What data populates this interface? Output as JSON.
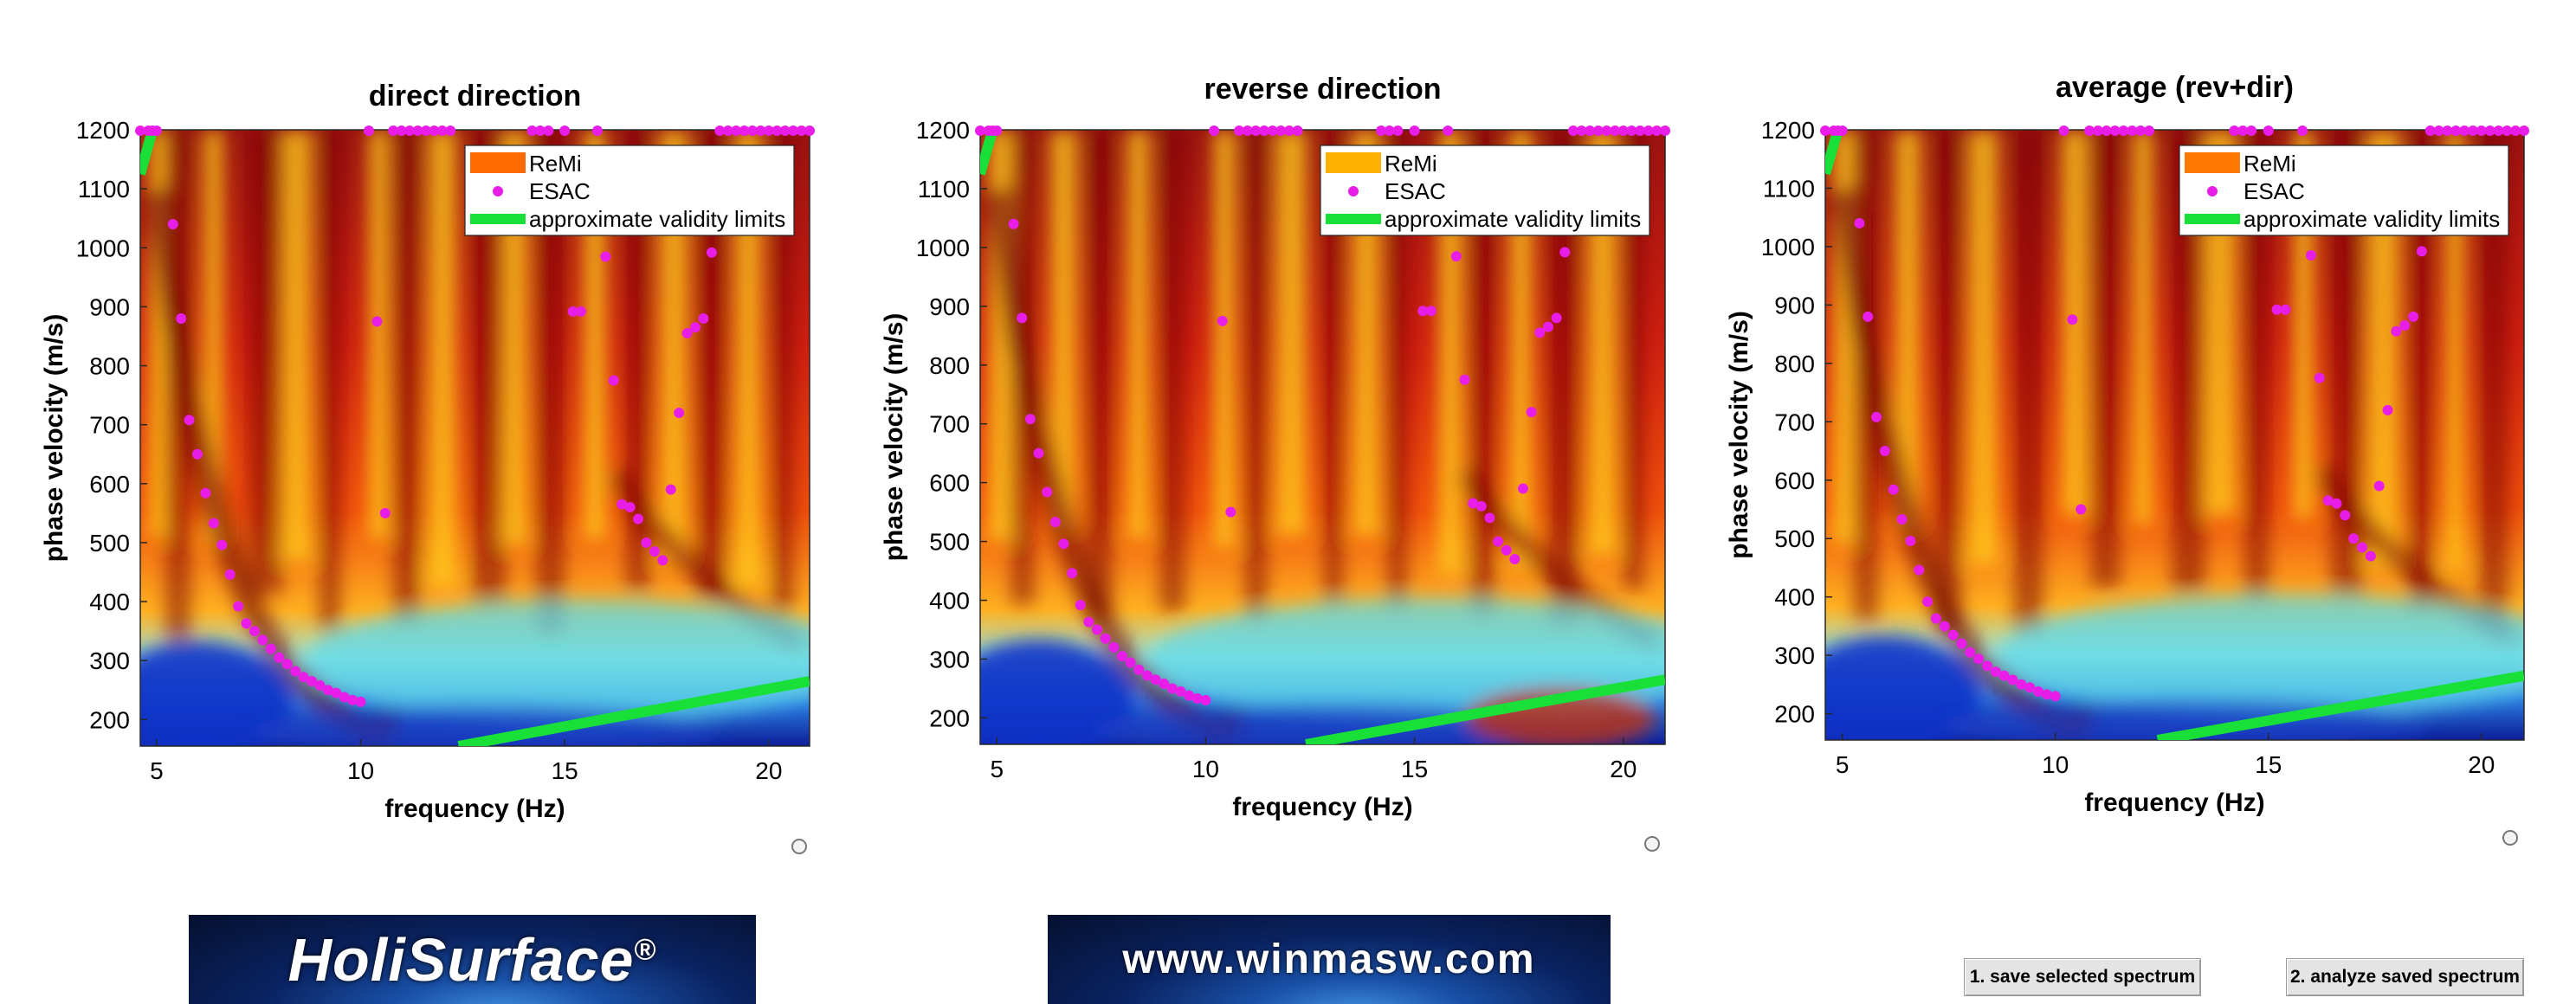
{
  "chart_data": [
    {
      "type": "heatmap",
      "title": "direct direction",
      "xlabel": "frequency (Hz)",
      "ylabel": "phase velocity (m/s)",
      "xlim": [
        4.6,
        21
      ],
      "ylim": [
        155,
        1200
      ],
      "xticks": [
        "5",
        "10",
        "15",
        "20"
      ],
      "yticks": [
        "1200",
        "1100",
        "1000",
        "900",
        "800",
        "700",
        "600",
        "500",
        "400",
        "300",
        "200"
      ],
      "legend": {
        "position": "top-right",
        "items": [
          "ReMi",
          "ESAC",
          "approximate validity limits"
        ]
      },
      "remi_swatch_color": "#ff6a00",
      "validity_limits": [
        {
          "x": [
            4.6,
            4.9
          ],
          "y": [
            1125,
            1200
          ]
        },
        {
          "x": [
            12.4,
            21.0
          ],
          "y": [
            155,
            265
          ]
        }
      ],
      "esac": {
        "color": "#e81ee8",
        "x": [
          4.6,
          4.8,
          4.9,
          5.0,
          5.4,
          5.6,
          5.8,
          6.0,
          6.2,
          6.4,
          6.6,
          6.8,
          7.0,
          7.2,
          7.4,
          7.6,
          7.8,
          8.0,
          8.2,
          8.4,
          8.6,
          8.8,
          9.0,
          9.2,
          9.4,
          9.6,
          9.8,
          10.0,
          10.2,
          10.4,
          10.6,
          10.8,
          11.0,
          11.2,
          11.4,
          11.6,
          11.8,
          12.0,
          12.2,
          14.2,
          14.4,
          14.6,
          15.0,
          15.2,
          15.4,
          15.8,
          16.0,
          16.2,
          16.4,
          16.6,
          16.8,
          17.0,
          17.2,
          17.4,
          17.6,
          17.8,
          18.0,
          18.2,
          18.4,
          18.6,
          18.8,
          19.0,
          19.2,
          19.4,
          19.6,
          19.8,
          20.0,
          20.2,
          20.4,
          20.6,
          20.8,
          21.0
        ],
        "y": [
          1200,
          1200,
          1200,
          1200,
          1040,
          880,
          708,
          650,
          584,
          533,
          496,
          446,
          392,
          363,
          350,
          335,
          320,
          305,
          294,
          282,
          272,
          265,
          258,
          250,
          245,
          238,
          233,
          230,
          1200,
          875,
          550,
          1200,
          1200,
          1200,
          1200,
          1200,
          1200,
          1200,
          1200,
          1200,
          1200,
          1200,
          1200,
          892,
          892,
          1200,
          985,
          775,
          565,
          560,
          540,
          500,
          485,
          470,
          590,
          720,
          855,
          865,
          880,
          992,
          1200,
          1200,
          1200,
          1200,
          1200,
          1200,
          1200,
          1200,
          1200,
          1200,
          1200,
          1200
        ]
      }
    },
    {
      "type": "heatmap",
      "title": "reverse direction",
      "xlabel": "frequency (Hz)",
      "ylabel": "phase velocity (m/s)",
      "xlim": [
        4.6,
        21
      ],
      "ylim": [
        155,
        1200
      ],
      "xticks": [
        "5",
        "10",
        "15",
        "20"
      ],
      "yticks": [
        "1200",
        "1100",
        "1000",
        "900",
        "800",
        "700",
        "600",
        "500",
        "400",
        "300",
        "200"
      ],
      "legend": {
        "position": "top-right",
        "items": [
          "ReMi",
          "ESAC",
          "approximate validity limits"
        ]
      },
      "remi_swatch_color": "#ffb000",
      "validity_limits": [
        {
          "x": [
            4.6,
            4.9
          ],
          "y": [
            1125,
            1200
          ]
        },
        {
          "x": [
            12.4,
            21.0
          ],
          "y": [
            155,
            265
          ]
        }
      ],
      "esac": {
        "color": "#e81ee8",
        "x": [
          4.6,
          4.8,
          4.9,
          5.0,
          5.4,
          5.6,
          5.8,
          6.0,
          6.2,
          6.4,
          6.6,
          6.8,
          7.0,
          7.2,
          7.4,
          7.6,
          7.8,
          8.0,
          8.2,
          8.4,
          8.6,
          8.8,
          9.0,
          9.2,
          9.4,
          9.6,
          9.8,
          10.0,
          10.2,
          10.4,
          10.6,
          10.8,
          11.0,
          11.2,
          11.4,
          11.6,
          11.8,
          12.0,
          12.2,
          14.2,
          14.4,
          14.6,
          15.0,
          15.2,
          15.4,
          15.8,
          16.0,
          16.2,
          16.4,
          16.6,
          16.8,
          17.0,
          17.2,
          17.4,
          17.6,
          17.8,
          18.0,
          18.2,
          18.4,
          18.6,
          18.8,
          19.0,
          19.2,
          19.4,
          19.6,
          19.8,
          20.0,
          20.2,
          20.4,
          20.6,
          20.8,
          21.0
        ],
        "y": [
          1200,
          1200,
          1200,
          1200,
          1040,
          880,
          708,
          650,
          584,
          533,
          496,
          446,
          392,
          363,
          350,
          335,
          320,
          305,
          294,
          282,
          272,
          265,
          258,
          250,
          245,
          238,
          233,
          230,
          1200,
          875,
          550,
          1200,
          1200,
          1200,
          1200,
          1200,
          1200,
          1200,
          1200,
          1200,
          1200,
          1200,
          1200,
          892,
          892,
          1200,
          985,
          775,
          565,
          560,
          540,
          500,
          485,
          470,
          590,
          720,
          855,
          865,
          880,
          992,
          1200,
          1200,
          1200,
          1200,
          1200,
          1200,
          1200,
          1200,
          1200,
          1200,
          1200,
          1200
        ]
      }
    },
    {
      "type": "heatmap",
      "title": "average (rev+dir)",
      "xlabel": "frequency (Hz)",
      "ylabel": "phase velocity (m/s)",
      "xlim": [
        4.6,
        21
      ],
      "ylim": [
        155,
        1200
      ],
      "xticks": [
        "5",
        "10",
        "15",
        "20"
      ],
      "yticks": [
        "1200",
        "1100",
        "1000",
        "900",
        "800",
        "700",
        "600",
        "500",
        "400",
        "300",
        "200"
      ],
      "legend": {
        "position": "top-right",
        "items": [
          "ReMi",
          "ESAC",
          "approximate validity limits"
        ]
      },
      "remi_swatch_color": "#ff7a00",
      "validity_limits": [
        {
          "x": [
            4.6,
            4.9
          ],
          "y": [
            1125,
            1200
          ]
        },
        {
          "x": [
            12.4,
            21.0
          ],
          "y": [
            155,
            265
          ]
        }
      ],
      "esac": {
        "color": "#e81ee8",
        "x": [
          4.6,
          4.8,
          4.9,
          5.0,
          5.4,
          5.6,
          5.8,
          6.0,
          6.2,
          6.4,
          6.6,
          6.8,
          7.0,
          7.2,
          7.4,
          7.6,
          7.8,
          8.0,
          8.2,
          8.4,
          8.6,
          8.8,
          9.0,
          9.2,
          9.4,
          9.6,
          9.8,
          10.0,
          10.2,
          10.4,
          10.6,
          10.8,
          11.0,
          11.2,
          11.4,
          11.6,
          11.8,
          12.0,
          12.2,
          14.2,
          14.4,
          14.6,
          15.0,
          15.2,
          15.4,
          15.8,
          16.0,
          16.2,
          16.4,
          16.6,
          16.8,
          17.0,
          17.2,
          17.4,
          17.6,
          17.8,
          18.0,
          18.2,
          18.4,
          18.6,
          18.8,
          19.0,
          19.2,
          19.4,
          19.6,
          19.8,
          20.0,
          20.2,
          20.4,
          20.6,
          20.8,
          21.0
        ],
        "y": [
          1200,
          1200,
          1200,
          1200,
          1040,
          880,
          708,
          650,
          584,
          533,
          496,
          446,
          392,
          363,
          350,
          335,
          320,
          305,
          294,
          282,
          272,
          265,
          258,
          250,
          245,
          238,
          233,
          230,
          1200,
          875,
          550,
          1200,
          1200,
          1200,
          1200,
          1200,
          1200,
          1200,
          1200,
          1200,
          1200,
          1200,
          1200,
          892,
          892,
          1200,
          985,
          775,
          565,
          560,
          540,
          500,
          485,
          470,
          590,
          720,
          855,
          865,
          880,
          992,
          1200,
          1200,
          1200,
          1200,
          1200,
          1200,
          1200,
          1200,
          1200,
          1200,
          1200,
          1200
        ]
      }
    }
  ],
  "logos": {
    "holisurface": "HoliSurface",
    "registered": "®",
    "winmasw": "www.winmasw.com"
  },
  "buttons": {
    "save": "1. save selected spectrum",
    "analyze": "2. analyze saved spectrum"
  }
}
